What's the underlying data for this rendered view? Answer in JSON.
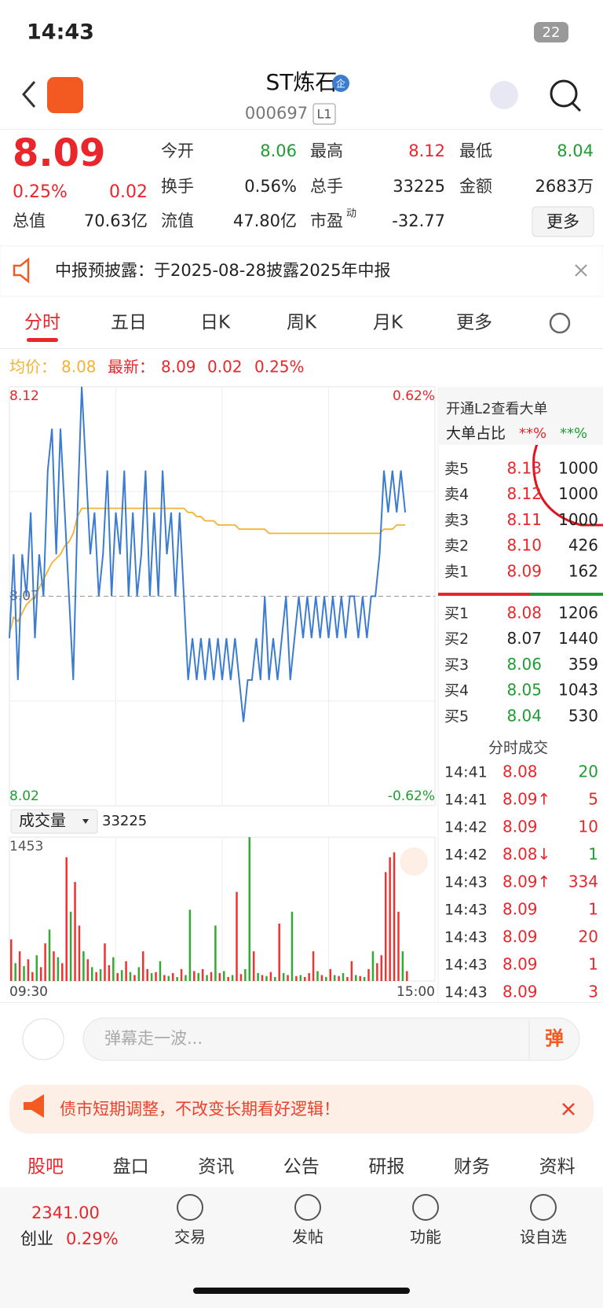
{
  "status": {
    "time": "14:43",
    "battery": "22"
  },
  "header": {
    "title": "ST炼石",
    "badge": "企",
    "code": "000697",
    "level": "L1"
  },
  "quote": {
    "price": "8.09",
    "change_pct": "0.25%",
    "change": "0.02",
    "color": "#e8262c",
    "fields": [
      {
        "label": "今开",
        "value": "8.06",
        "color": "#1e9e32"
      },
      {
        "label": "最高",
        "value": "8.12",
        "color": "#e8262c"
      },
      {
        "label": "最低",
        "value": "8.04",
        "color": "#1e9e32"
      },
      {
        "label": "换手",
        "value": "0.56%",
        "color": "#222222"
      },
      {
        "label": "总手",
        "value": "33225",
        "color": "#222222"
      },
      {
        "label": "金额",
        "value": "2683万",
        "color": "#222222"
      },
      {
        "label": "总值",
        "value": "70.63亿",
        "color": "#222222"
      },
      {
        "label": "流值",
        "value": "47.80亿",
        "color": "#222222"
      },
      {
        "label": "市盈",
        "sup": "动",
        "value": "-32.77",
        "color": "#222222"
      }
    ],
    "more": "更多"
  },
  "notice": "中报预披露：于2025-08-28披露2025年中报",
  "tabs": [
    "分时",
    "五日",
    "日K",
    "周K",
    "月K",
    "更多"
  ],
  "info": {
    "avg_label": "均价：",
    "avg": "8.08",
    "last_label": "最新：",
    "last": "8.09",
    "change": "0.02",
    "change_pct": "0.25%"
  },
  "chart": {
    "ylim": [
      8.02,
      8.12
    ],
    "xlim": [
      0,
      100
    ],
    "top_label": "8.12",
    "bottom_label": "8.02",
    "mid_label": "8.07",
    "top_pct": "0.62%",
    "bottom_pct": "-0.62%",
    "price_color": "#3b7bd0",
    "avg_color": "#f5b231",
    "price": [
      8.06,
      8.08,
      8.05,
      8.08,
      8.07,
      8.09,
      8.06,
      8.08,
      8.07,
      8.1,
      8.11,
      8.08,
      8.11,
      8.09,
      8.07,
      8.05,
      8.09,
      8.12,
      8.1,
      8.08,
      8.09,
      8.07,
      8.08,
      8.1,
      8.07,
      8.09,
      8.08,
      8.1,
      8.07,
      8.09,
      8.07,
      8.08,
      8.1,
      8.07,
      8.09,
      8.07,
      8.1,
      8.08,
      8.09,
      8.07,
      8.09,
      8.07,
      8.05,
      8.06,
      8.05,
      8.06,
      8.05,
      8.06,
      8.05,
      8.06,
      8.05,
      8.06,
      8.05,
      8.06,
      8.05,
      8.04,
      8.05,
      8.05,
      8.06,
      8.05,
      8.07,
      8.05,
      8.06,
      8.05,
      8.06,
      8.07,
      8.05,
      8.06,
      8.07,
      8.06,
      8.07,
      8.06,
      8.07,
      8.06,
      8.07,
      8.06,
      8.07,
      8.06,
      8.07,
      8.06,
      8.07,
      8.07,
      8.06,
      8.07,
      8.06,
      8.07,
      8.07,
      8.08,
      8.1,
      8.09,
      8.1,
      8.09,
      8.1,
      8.09
    ],
    "avg": [
      8.061,
      8.065,
      8.064,
      8.066,
      8.068,
      8.069,
      8.07,
      8.072,
      8.074,
      8.076,
      8.078,
      8.079,
      8.08,
      8.082,
      8.083,
      8.085,
      8.089,
      8.091,
      8.091,
      8.091,
      8.091,
      8.091,
      8.091,
      8.091,
      8.091,
      8.091,
      8.091,
      8.091,
      8.091,
      8.091,
      8.091,
      8.091,
      8.091,
      8.091,
      8.091,
      8.091,
      8.091,
      8.091,
      8.091,
      8.091,
      8.091,
      8.091,
      8.09,
      8.09,
      8.089,
      8.089,
      8.088,
      8.088,
      8.088,
      8.087,
      8.087,
      8.087,
      8.087,
      8.087,
      8.086,
      8.086,
      8.086,
      8.086,
      8.086,
      8.086,
      8.086,
      8.085,
      8.085,
      8.085,
      8.085,
      8.085,
      8.085,
      8.085,
      8.085,
      8.085,
      8.085,
      8.085,
      8.085,
      8.085,
      8.085,
      8.085,
      8.085,
      8.085,
      8.085,
      8.085,
      8.085,
      8.085,
      8.085,
      8.085,
      8.085,
      8.085,
      8.085,
      8.085,
      8.086,
      8.086,
      8.086,
      8.087,
      8.087,
      8.087
    ]
  },
  "volume": {
    "label": "成交量",
    "total": "33225",
    "max_label": "1453",
    "ylim": [
      0,
      1453
    ],
    "xlim": [
      0,
      100
    ],
    "start": "09:30",
    "end": "15:00",
    "values": [
      420,
      180,
      300,
      150,
      220,
      90,
      260,
      140,
      380,
      520,
      300,
      240,
      180,
      1250,
      700,
      1000,
      560,
      300,
      220,
      140,
      90,
      120,
      380,
      160,
      240,
      80,
      110,
      200,
      90,
      60,
      140,
      300,
      120,
      80,
      90,
      200,
      60,
      50,
      80,
      40,
      120,
      60,
      720,
      100,
      80,
      120,
      60,
      90,
      560,
      80,
      100,
      40,
      60,
      900,
      70,
      120,
      1453,
      300,
      80,
      60,
      50,
      90,
      40,
      580,
      80,
      60,
      700,
      50,
      60,
      40,
      80,
      300,
      100,
      60,
      40,
      120,
      60,
      50,
      80,
      40,
      200,
      60,
      50,
      40,
      120,
      300,
      180,
      260,
      1100,
      1250,
      1300,
      700,
      300,
      100
    ],
    "colors": [
      "#e33",
      "#3a3",
      "#e33",
      "#3a3",
      "#e33",
      "#e33",
      "#3a3",
      "#e33",
      "#e33",
      "#3a3",
      "#e33",
      "#3a3",
      "#e33",
      "#e33",
      "#3a3",
      "#e33",
      "#e33",
      "#3a3",
      "#e33",
      "#3a3",
      "#e33",
      "#3a3",
      "#e33",
      "#e33",
      "#3a3",
      "#e33",
      "#3a3",
      "#e33",
      "#3a3",
      "#e33",
      "#3a3",
      "#e33",
      "#e33",
      "#3a3",
      "#e33",
      "#3a3",
      "#e33",
      "#3a3",
      "#e33",
      "#3a3",
      "#e33",
      "#3a3",
      "#3a3",
      "#e33",
      "#3a3",
      "#e33",
      "#3a3",
      "#e33",
      "#3a3",
      "#e33",
      "#3a3",
      "#e33",
      "#3a3",
      "#e33",
      "#e33",
      "#3a3",
      "#3a3",
      "#e33",
      "#3a3",
      "#e33",
      "#3a3",
      "#e33",
      "#3a3",
      "#e33",
      "#3a3",
      "#e33",
      "#3a3",
      "#e33",
      "#3a3",
      "#e33",
      "#e33",
      "#e33",
      "#3a3",
      "#e33",
      "#3a3",
      "#e33",
      "#3a3",
      "#e33",
      "#3a3",
      "#e33",
      "#e33",
      "#3a3",
      "#e33",
      "#3a3",
      "#e33",
      "#3a3",
      "#e33",
      "#e33",
      "#e33",
      "#e33",
      "#e33",
      "#e33",
      "#3a3",
      "#e33"
    ]
  },
  "book": {
    "l2": "开通L2查看大单",
    "ratio_label": "大单占比",
    "ratio_buy": "**%",
    "ratio_sell": "**%",
    "asks": [
      {
        "label": "卖5",
        "price": "8.13",
        "volume": "1000",
        "color": "#e8262c"
      },
      {
        "label": "卖4",
        "price": "8.12",
        "volume": "1000",
        "color": "#e8262c"
      },
      {
        "label": "卖3",
        "price": "8.11",
        "volume": "1000",
        "color": "#e8262c"
      },
      {
        "label": "卖2",
        "price": "8.10",
        "volume": "426",
        "color": "#e8262c"
      },
      {
        "label": "卖1",
        "price": "8.09",
        "volume": "162",
        "color": "#e8262c"
      }
    ],
    "bids": [
      {
        "label": "买1",
        "price": "8.08",
        "volume": "1206",
        "color": "#e8262c"
      },
      {
        "label": "买2",
        "price": "8.07",
        "volume": "1440",
        "color": "#222222"
      },
      {
        "label": "买3",
        "price": "8.06",
        "volume": "359",
        "color": "#1e9e32"
      },
      {
        "label": "买4",
        "price": "8.05",
        "volume": "1043",
        "color": "#1e9e32"
      },
      {
        "label": "买5",
        "price": "8.04",
        "volume": "530",
        "color": "#1e9e32"
      }
    ]
  },
  "trades": {
    "title": "分时成交",
    "rows": [
      {
        "time": "14:41",
        "price": "8.08",
        "volume": "20",
        "volume_color": "#1e9e32"
      },
      {
        "time": "14:41",
        "price": "8.09↑",
        "volume": "5",
        "volume_color": "#e8262c"
      },
      {
        "time": "14:42",
        "price": "8.09",
        "volume": "10",
        "volume_color": "#e8262c"
      },
      {
        "time": "14:42",
        "price": "8.08↓",
        "volume": "1",
        "volume_color": "#1e9e32"
      },
      {
        "time": "14:43",
        "price": "8.09↑",
        "volume": "334",
        "volume_color": "#e8262c"
      },
      {
        "time": "14:43",
        "price": "8.09",
        "volume": "1",
        "volume_color": "#e8262c"
      },
      {
        "time": "14:43",
        "price": "8.09",
        "volume": "20",
        "volume_color": "#e8262c"
      },
      {
        "time": "14:43",
        "price": "8.09",
        "volume": "1",
        "volume_color": "#e8262c"
      },
      {
        "time": "14:43",
        "price": "8.09",
        "volume": "3",
        "volume_color": "#e8262c"
      }
    ]
  },
  "danmaku": {
    "placeholder": "弹幕走一波...",
    "button": "弹"
  },
  "banner": "债市短期调整，不改变长期看好逻辑！",
  "bottom_tabs": [
    "股吧",
    "盘口",
    "资讯",
    "公告",
    "研报",
    "财务",
    "资料"
  ],
  "nav": {
    "index_value": "2341.00",
    "index_name": "创业",
    "index_pct": "0.29%",
    "items": [
      "交易",
      "发帖",
      "功能",
      "设自选"
    ]
  }
}
